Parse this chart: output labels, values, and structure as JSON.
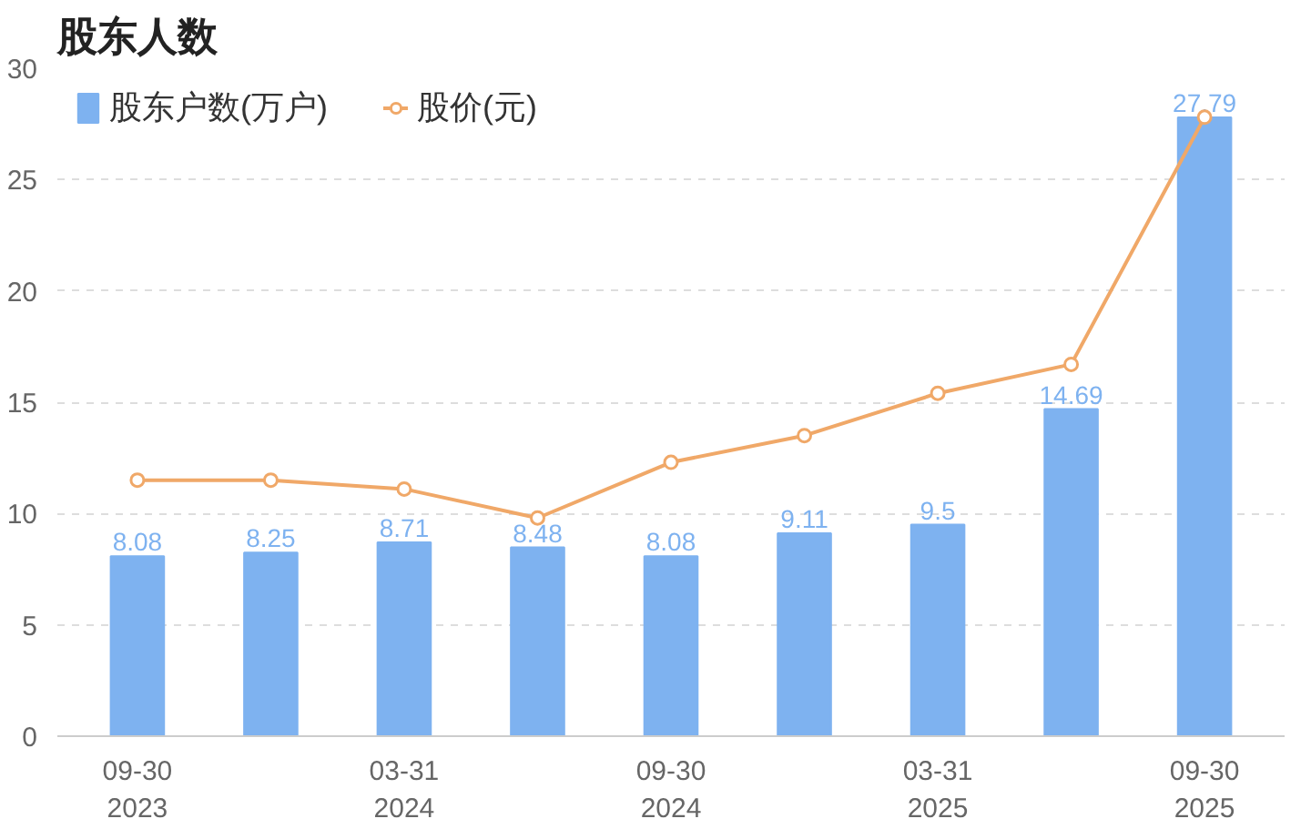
{
  "chart_data": {
    "type": "bar",
    "title": "股东人数",
    "categories": [
      "09-30\n2023",
      null,
      "03-31\n2024",
      null,
      "09-30\n2024",
      null,
      "03-31\n2025",
      null,
      "09-30\n2025"
    ],
    "series": [
      {
        "name": "股东户数(万户)",
        "color": "#7eb2f0",
        "values": [
          8.08,
          8.25,
          8.71,
          8.48,
          8.08,
          9.11,
          9.5,
          14.69,
          27.79
        ],
        "data_labels": true
      },
      {
        "name": "股价(元)",
        "type": "line",
        "color": "#f0a868",
        "values": [
          11.5,
          11.5,
          11.1,
          9.8,
          12.3,
          13.5,
          15.4,
          16.7,
          27.8
        ],
        "marker": "circle"
      }
    ],
    "ylim": [
      0,
      30
    ],
    "yticks": [
      0,
      5,
      10,
      15,
      20,
      25,
      30
    ],
    "grid": "y",
    "legend": "top left"
  }
}
